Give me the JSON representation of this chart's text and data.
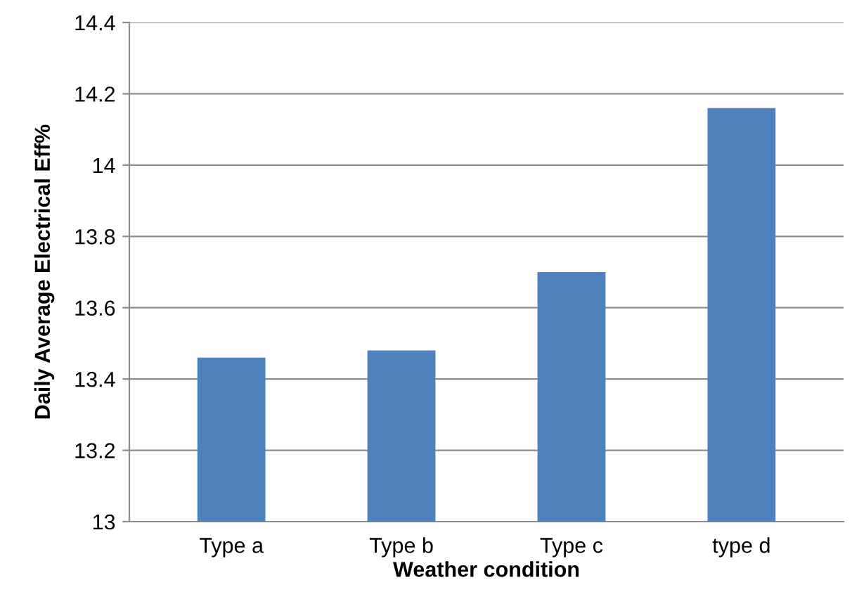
{
  "chart_data": {
    "type": "bar",
    "xlabel": "Weather condition",
    "ylabel": "Daily Average Electrical Eff%",
    "categories": [
      "Type a",
      "Type b",
      "Type c",
      "type d"
    ],
    "values": [
      13.46,
      13.48,
      13.7,
      14.16
    ],
    "color": "#4f81bd",
    "ylim": [
      13,
      14.4
    ],
    "yticks": [
      13,
      {
        "value": 13.2,
        "label": "13.2"
      },
      {
        "value": 13.4,
        "label": "13.4"
      },
      {
        "value": 13.6,
        "label": "13.6"
      },
      {
        "value": 13.8,
        "label": "13.8"
      },
      14,
      {
        "value": 14.2,
        "label": "14.2"
      },
      {
        "value": 14.4,
        "label": "14.4"
      }
    ],
    "grid": "y"
  }
}
